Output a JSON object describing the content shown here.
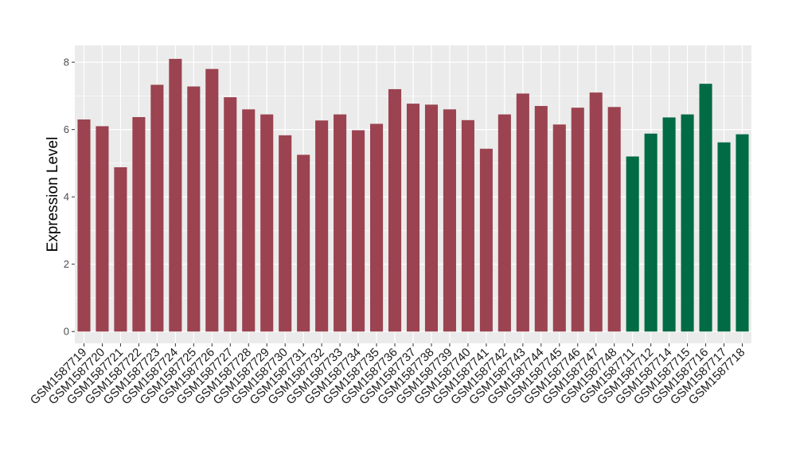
{
  "chart_data": {
    "type": "bar",
    "ylabel": "Expression Level",
    "xlabel": "",
    "ylim": [
      -0.35,
      8.5
    ],
    "yticks": [
      0,
      2,
      4,
      6,
      8
    ],
    "yticks_labels": [
      "0",
      "2",
      "4",
      "6",
      "8"
    ],
    "grid": true,
    "categories": [
      "GSM1587719",
      "GSM1587720",
      "GSM1587721",
      "GSM1587722",
      "GSM1587723",
      "GSM1587724",
      "GSM1587725",
      "GSM1587726",
      "GSM1587727",
      "GSM1587728",
      "GSM1587729",
      "GSM1587730",
      "GSM1587731",
      "GSM1587732",
      "GSM1587733",
      "GSM1587734",
      "GSM1587735",
      "GSM1587736",
      "GSM1587737",
      "GSM1587738",
      "GSM1587739",
      "GSM1587740",
      "GSM1587741",
      "GSM1587742",
      "GSM1587743",
      "GSM1587744",
      "GSM1587745",
      "GSM1587746",
      "GSM1587747",
      "GSM1587748",
      "GSM1587711",
      "GSM1587712",
      "GSM1587714",
      "GSM1587715",
      "GSM1587716",
      "GSM1587717",
      "GSM1587718"
    ],
    "values": [
      6.3,
      6.1,
      4.88,
      6.37,
      7.33,
      8.1,
      7.28,
      7.8,
      6.96,
      6.6,
      6.45,
      5.83,
      5.25,
      6.27,
      6.45,
      5.98,
      6.17,
      7.2,
      6.77,
      6.74,
      6.6,
      6.28,
      5.43,
      6.45,
      7.07,
      6.7,
      6.15,
      6.65,
      7.1,
      6.67,
      5.2,
      5.88,
      6.36,
      6.45,
      7.36,
      5.62,
      5.86
    ],
    "groups": [
      "a",
      "a",
      "a",
      "a",
      "a",
      "a",
      "a",
      "a",
      "a",
      "a",
      "a",
      "a",
      "a",
      "a",
      "a",
      "a",
      "a",
      "a",
      "a",
      "a",
      "a",
      "a",
      "a",
      "a",
      "a",
      "a",
      "a",
      "a",
      "a",
      "a",
      "b",
      "b",
      "b",
      "b",
      "b",
      "b",
      "b"
    ]
  },
  "colors": {
    "group_a": "#9B4350",
    "group_b": "#006B45",
    "panel_bg": "#EBEBEB",
    "grid": "#FFFFFF",
    "tick": "#4d4d4d"
  }
}
